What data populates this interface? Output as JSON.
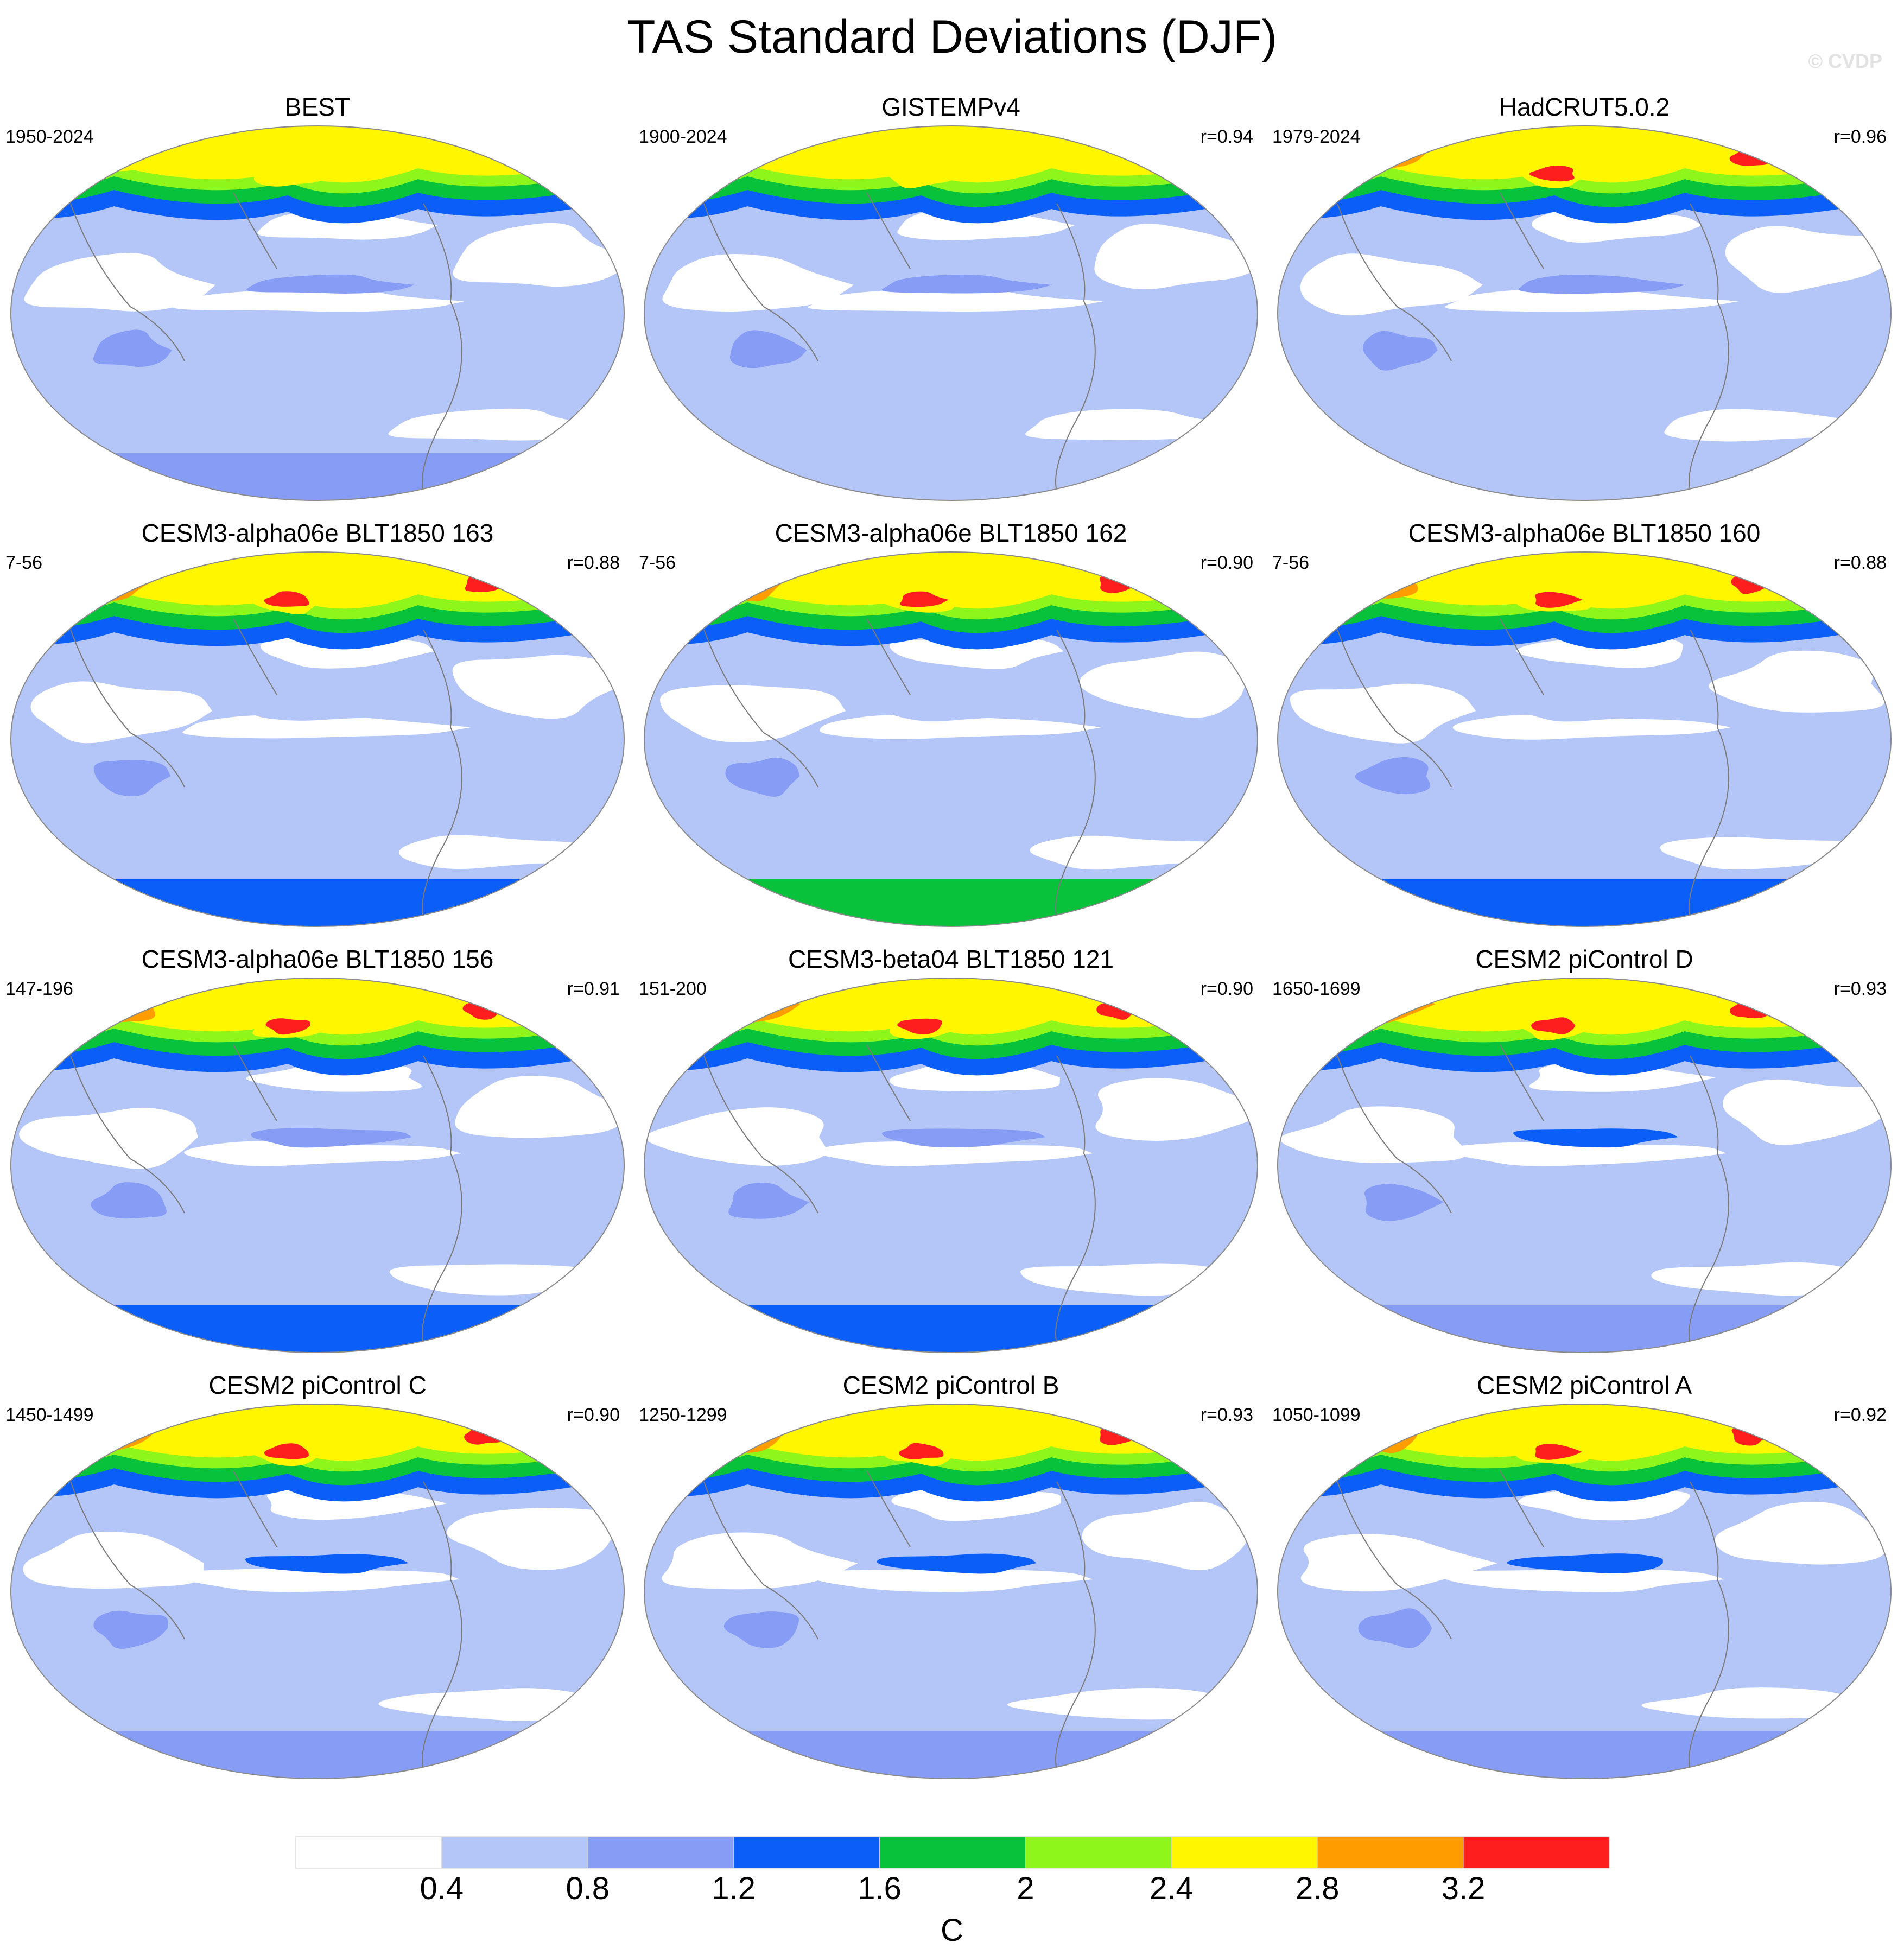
{
  "title": "TAS Standard Deviations (DJF)",
  "watermark": "© CVDP",
  "colorbar": {
    "levels": [
      "0.4",
      "0.8",
      "1.2",
      "1.6",
      "2",
      "2.4",
      "2.8",
      "3.2"
    ],
    "colors": [
      "#ffffff",
      "#b4c5f8",
      "#879cf5",
      "#0b5ff8",
      "#07c23a",
      "#8ff61c",
      "#fff600",
      "#ff9d00",
      "#ff1e1e"
    ],
    "units": "C"
  },
  "map_data": {
    "variable": "TAS standard deviation",
    "season": "DJF",
    "projection": "Robinson, Pacific-centered",
    "panels": [
      {
        "title": "BEST",
        "period": "1950-2024",
        "r": "",
        "nh_max_level": 7,
        "sh_level": 1,
        "eq_pacific_level": 2,
        "antarctic_level": 2
      },
      {
        "title": "GISTEMPv4",
        "period": "1900-2024",
        "r": "r=0.94",
        "nh_max_level": 6,
        "sh_level": 1,
        "eq_pacific_level": 2,
        "antarctic_level": 1
      },
      {
        "title": "HadCRUT5.0.2",
        "period": "1979-2024",
        "r": "r=0.96",
        "nh_max_level": 8,
        "sh_level": 1,
        "eq_pacific_level": 2,
        "antarctic_level": 1
      },
      {
        "title": "CESM3-alpha06e BLT1850 163",
        "period": "7-56",
        "r": "r=0.88",
        "nh_max_level": 8,
        "sh_level": 1,
        "eq_pacific_level": 1,
        "antarctic_level": 3
      },
      {
        "title": "CESM3-alpha06e BLT1850 162",
        "period": "7-56",
        "r": "r=0.90",
        "nh_max_level": 8,
        "sh_level": 1,
        "eq_pacific_level": 1,
        "antarctic_level": 4
      },
      {
        "title": "CESM3-alpha06e BLT1850 160",
        "period": "7-56",
        "r": "r=0.88",
        "nh_max_level": 8,
        "sh_level": 1,
        "eq_pacific_level": 1,
        "antarctic_level": 3
      },
      {
        "title": "CESM3-alpha06e BLT1850 156",
        "period": "147-196",
        "r": "r=0.91",
        "nh_max_level": 8,
        "sh_level": 1,
        "eq_pacific_level": 2,
        "antarctic_level": 3
      },
      {
        "title": "CESM3-beta04 BLT1850 121",
        "period": "151-200",
        "r": "r=0.90",
        "nh_max_level": 8,
        "sh_level": 1,
        "eq_pacific_level": 2,
        "antarctic_level": 3
      },
      {
        "title": "CESM2 piControl D",
        "period": "1650-1699",
        "r": "r=0.93",
        "nh_max_level": 8,
        "sh_level": 1,
        "eq_pacific_level": 3,
        "antarctic_level": 2
      },
      {
        "title": "CESM2 piControl C",
        "period": "1450-1499",
        "r": "r=0.90",
        "nh_max_level": 8,
        "sh_level": 1,
        "eq_pacific_level": 3,
        "antarctic_level": 2
      },
      {
        "title": "CESM2 piControl B",
        "period": "1250-1299",
        "r": "r=0.93",
        "nh_max_level": 8,
        "sh_level": 1,
        "eq_pacific_level": 3,
        "antarctic_level": 2
      },
      {
        "title": "CESM2 piControl A",
        "period": "1050-1099",
        "r": "r=0.92",
        "nh_max_level": 8,
        "sh_level": 1,
        "eq_pacific_level": 3,
        "antarctic_level": 2
      }
    ]
  }
}
